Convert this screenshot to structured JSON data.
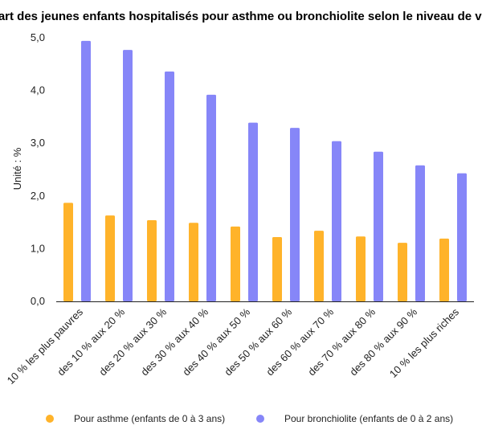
{
  "chart_data": {
    "type": "bar",
    "title": "Part des jeunes enfants hospitalisés pour asthme ou bronchiolite selon le niveau de vie",
    "xlabel": "",
    "ylabel": "Unité : %",
    "ylim": [
      0,
      5
    ],
    "yticks": [
      "0,0",
      "1,0",
      "2,0",
      "3,0",
      "4,0",
      "5,0"
    ],
    "grid": false,
    "legend_position": "bottom",
    "categories": [
      "10 % les plus pauvres",
      "des 10 % aux 20 %",
      "des 20 % aux 30 %",
      "des 30 % aux 40 %",
      "des 40 % aux 50 %",
      "des 50 % aux 60 %",
      "des 60 % aux 70 %",
      "des 70 % aux 80 %",
      "des 80 % aux 90 %",
      "10 % les plus riches"
    ],
    "series": [
      {
        "name": "Pour asthme (enfants de 0 à 3 ans)",
        "color": "#ffb32a",
        "values": [
          1.87,
          1.63,
          1.54,
          1.49,
          1.42,
          1.22,
          1.34,
          1.23,
          1.11,
          1.19
        ]
      },
      {
        "name": "Pour bronchiolite (enfants de 0 à 2 ans)",
        "color": "#8686f8",
        "values": [
          4.94,
          4.77,
          4.36,
          3.92,
          3.39,
          3.29,
          3.04,
          2.84,
          2.58,
          2.43
        ]
      }
    ]
  }
}
